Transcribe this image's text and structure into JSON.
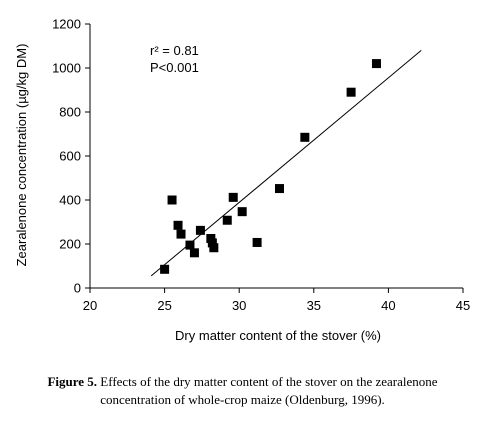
{
  "chart_data": {
    "type": "scatter",
    "title": "",
    "xlabel": "Dry matter content of the stover (%)",
    "ylabel": "Zearalenone concentration (µg/kg DM)",
    "xlim": [
      20,
      45
    ],
    "ylim": [
      0,
      1200
    ],
    "xticks": [
      "20",
      "25",
      "30",
      "35",
      "40",
      "45"
    ],
    "yticks": [
      "0",
      "200",
      "400",
      "600",
      "800",
      "1000",
      "1200"
    ],
    "grid": false,
    "legend": "none",
    "marker_color": "#000000",
    "annotations": [
      "r² = 0.81",
      "P<0.001"
    ],
    "points": [
      {
        "x": 25.0,
        "y": 85
      },
      {
        "x": 25.5,
        "y": 400
      },
      {
        "x": 25.9,
        "y": 285
      },
      {
        "x": 26.1,
        "y": 245
      },
      {
        "x": 26.7,
        "y": 195
      },
      {
        "x": 27.0,
        "y": 160
      },
      {
        "x": 27.4,
        "y": 262
      },
      {
        "x": 28.1,
        "y": 225
      },
      {
        "x": 28.2,
        "y": 205
      },
      {
        "x": 28.3,
        "y": 183
      },
      {
        "x": 29.2,
        "y": 308
      },
      {
        "x": 29.6,
        "y": 412
      },
      {
        "x": 30.2,
        "y": 347
      },
      {
        "x": 31.2,
        "y": 207
      },
      {
        "x": 32.7,
        "y": 452
      },
      {
        "x": 34.4,
        "y": 685
      },
      {
        "x": 37.5,
        "y": 890
      },
      {
        "x": 39.2,
        "y": 1020
      }
    ],
    "trendline": {
      "x": [
        24.1,
        42.2
      ],
      "y": [
        55,
        1080
      ]
    }
  },
  "caption": {
    "label": "Figure 5.",
    "line1": " Effects of the dry matter content of the stover on the zearalenone",
    "line2": "concentration of whole-crop maize  (Oldenburg, 1996)."
  }
}
